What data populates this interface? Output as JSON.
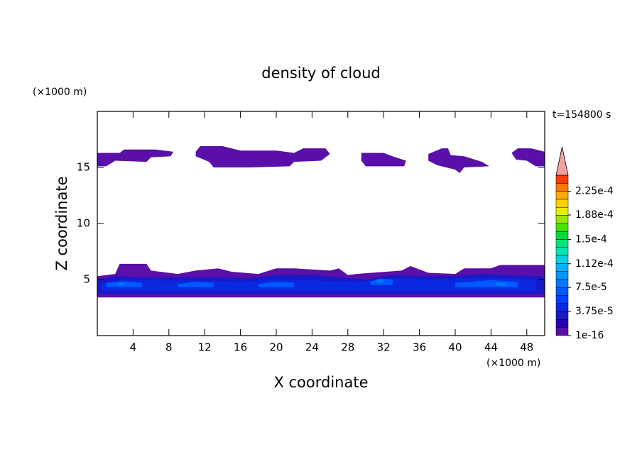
{
  "chart_data": {
    "type": "contour",
    "title": "density of cloud",
    "xlabel": "X coordinate",
    "ylabel": "Z coordinate",
    "xunit": "(×1000 m)",
    "yunit": "(×1000 m)",
    "annotation": "t=154800 s",
    "xlim": [
      0,
      50
    ],
    "ylim": [
      0,
      20
    ],
    "xticks": [
      4,
      8,
      12,
      16,
      20,
      24,
      28,
      32,
      36,
      40,
      44,
      48
    ],
    "yticks": [
      5,
      10,
      15
    ],
    "clim": [
      1e-16,
      0.00025
    ],
    "colors": [
      "#5a0fa8",
      "#2a00b4",
      "#1a18c8",
      "#0a28e0",
      "#0040ff",
      "#0058ff",
      "#0078ff",
      "#0096ff",
      "#00b4ff",
      "#00d2e6",
      "#00e6b4",
      "#00e678",
      "#00dc3c",
      "#46e600",
      "#9be600",
      "#e6f000",
      "#ffd200",
      "#ffaa00",
      "#ff7800",
      "#ff3c00"
    ],
    "extend_color": "#f4a0a0",
    "cticks": [
      {
        "value": 1e-16,
        "label": "1e-16"
      },
      {
        "value": 3.75e-05,
        "label": "3.75e-5"
      },
      {
        "value": 7.5e-05,
        "label": "7.5e-5"
      },
      {
        "value": 0.000112,
        "label": "1.12e-4"
      },
      {
        "value": 0.00015,
        "label": "1.5e-4"
      },
      {
        "value": 0.000188,
        "label": "1.88e-4"
      },
      {
        "value": 0.000225,
        "label": "2.25e-4"
      }
    ],
    "regions": [
      {
        "value": 5e-06,
        "points": [
          [
            0,
            15.1
          ],
          [
            0,
            16.3
          ],
          [
            2.5,
            16.3
          ],
          [
            3,
            16.6
          ],
          [
            6.5,
            16.6
          ],
          [
            8.5,
            16.4
          ],
          [
            8.2,
            16.0
          ],
          [
            6,
            15.9
          ],
          [
            5.5,
            15.5
          ],
          [
            2,
            15.6
          ],
          [
            1,
            15.1
          ]
        ]
      },
      {
        "value": 5e-06,
        "points": [
          [
            11,
            16.4
          ],
          [
            11.5,
            16.9
          ],
          [
            14,
            16.9
          ],
          [
            16,
            16.5
          ],
          [
            20,
            16.5
          ],
          [
            22,
            16.3
          ],
          [
            23,
            16.7
          ],
          [
            25.5,
            16.7
          ],
          [
            26,
            16.2
          ],
          [
            25,
            15.6
          ],
          [
            22,
            15.5
          ],
          [
            21.5,
            15.1
          ],
          [
            17,
            15.0
          ],
          [
            13,
            15.0
          ],
          [
            12.5,
            15.5
          ],
          [
            11,
            16
          ]
        ]
      },
      {
        "value": 5e-06,
        "points": [
          [
            29.5,
            16.3
          ],
          [
            32,
            16.3
          ],
          [
            33,
            16
          ],
          [
            34.5,
            15.6
          ],
          [
            34.3,
            15.1
          ],
          [
            30,
            15.1
          ],
          [
            29.5,
            15.6
          ]
        ]
      },
      {
        "value": 5e-06,
        "points": [
          [
            37,
            16.2
          ],
          [
            38.5,
            16.7
          ],
          [
            39.2,
            16.7
          ],
          [
            39.5,
            16.1
          ],
          [
            41,
            16
          ],
          [
            43,
            15.5
          ],
          [
            43.8,
            15.1
          ],
          [
            41,
            15
          ],
          [
            40.5,
            14.5
          ],
          [
            40,
            14.8
          ],
          [
            38,
            15.2
          ],
          [
            37,
            15.6
          ]
        ]
      },
      {
        "value": 5e-06,
        "points": [
          [
            46.3,
            16.3
          ],
          [
            47,
            16.7
          ],
          [
            48.5,
            16.7
          ],
          [
            50,
            16.4
          ],
          [
            50,
            15.1
          ],
          [
            49,
            15.1
          ],
          [
            48,
            15.6
          ],
          [
            46.8,
            15.7
          ]
        ]
      },
      {
        "value": 5e-06,
        "points": [
          [
            0,
            3.4
          ],
          [
            50,
            3.4
          ],
          [
            50,
            6.3
          ],
          [
            45,
            6.3
          ],
          [
            44,
            6.0
          ],
          [
            41,
            6.0
          ],
          [
            40,
            5.5
          ],
          [
            37,
            5.6
          ],
          [
            35,
            6.2
          ],
          [
            34,
            5.8
          ],
          [
            29,
            5.5
          ],
          [
            28,
            5.4
          ],
          [
            27,
            6.0
          ],
          [
            26,
            5.8
          ],
          [
            22,
            6.0
          ],
          [
            20,
            6.0
          ],
          [
            18,
            5.5
          ],
          [
            15,
            5.7
          ],
          [
            13.5,
            6.0
          ],
          [
            11,
            5.8
          ],
          [
            9,
            5.5
          ],
          [
            6,
            5.8
          ],
          [
            5.5,
            6.4
          ],
          [
            2.5,
            6.4
          ],
          [
            2,
            5.5
          ],
          [
            0,
            5.3
          ]
        ]
      },
      {
        "value": 3e-05,
        "points": [
          [
            0,
            3.7
          ],
          [
            50,
            3.7
          ],
          [
            50,
            5.3
          ],
          [
            46,
            5.4
          ],
          [
            43,
            5.5
          ],
          [
            40,
            5.3
          ],
          [
            36,
            5.3
          ],
          [
            33,
            5.4
          ],
          [
            30,
            5.0
          ],
          [
            27,
            5.2
          ],
          [
            24,
            5.4
          ],
          [
            20,
            5.4
          ],
          [
            17,
            5.1
          ],
          [
            14,
            5.2
          ],
          [
            10,
            5.2
          ],
          [
            6,
            5.2
          ],
          [
            2,
            5.3
          ],
          [
            0,
            5.0
          ]
        ]
      },
      {
        "value": 5e-05,
        "points": [
          [
            0.5,
            4.0
          ],
          [
            49,
            4.0
          ],
          [
            49,
            4.9
          ],
          [
            45,
            5.1
          ],
          [
            41,
            5.1
          ],
          [
            37,
            5.0
          ],
          [
            33,
            5.1
          ],
          [
            29,
            4.8
          ],
          [
            25,
            4.9
          ],
          [
            20,
            5.0
          ],
          [
            16,
            4.8
          ],
          [
            12,
            4.9
          ],
          [
            7,
            4.9
          ],
          [
            3,
            5.0
          ],
          [
            0.5,
            4.7
          ]
        ]
      },
      {
        "value": 6.5e-05,
        "points": [
          [
            1,
            4.3
          ],
          [
            5,
            4.3
          ],
          [
            5,
            4.7
          ],
          [
            3,
            4.85
          ],
          [
            1,
            4.7
          ]
        ]
      },
      {
        "value": 6.5e-05,
        "points": [
          [
            9,
            4.3
          ],
          [
            13,
            4.3
          ],
          [
            13,
            4.7
          ],
          [
            11,
            4.8
          ],
          [
            9,
            4.6
          ]
        ]
      },
      {
        "value": 6.5e-05,
        "points": [
          [
            18,
            4.3
          ],
          [
            22,
            4.3
          ],
          [
            22,
            4.7
          ],
          [
            20,
            4.8
          ],
          [
            18,
            4.6
          ]
        ]
      },
      {
        "value": 6.5e-05,
        "points": [
          [
            30.5,
            4.5
          ],
          [
            33,
            4.5
          ],
          [
            33,
            5.0
          ],
          [
            31.5,
            5.1
          ],
          [
            30.5,
            4.8
          ]
        ]
      },
      {
        "value": 6.5e-05,
        "points": [
          [
            40,
            4.3
          ],
          [
            47,
            4.3
          ],
          [
            47,
            4.8
          ],
          [
            44,
            4.95
          ],
          [
            40,
            4.7
          ]
        ]
      },
      {
        "value": 8e-05,
        "points": [
          [
            2.2,
            4.5
          ],
          [
            3,
            4.5
          ],
          [
            3,
            4.75
          ],
          [
            2.2,
            4.7
          ]
        ]
      },
      {
        "value": 8e-05,
        "points": [
          [
            31.2,
            4.7
          ],
          [
            32,
            4.7
          ],
          [
            32,
            5.0
          ],
          [
            31.2,
            4.95
          ]
        ]
      },
      {
        "value": 8e-05,
        "points": [
          [
            44.5,
            4.45
          ],
          [
            45.6,
            4.45
          ],
          [
            45.6,
            4.7
          ],
          [
            44.5,
            4.7
          ]
        ]
      }
    ]
  }
}
